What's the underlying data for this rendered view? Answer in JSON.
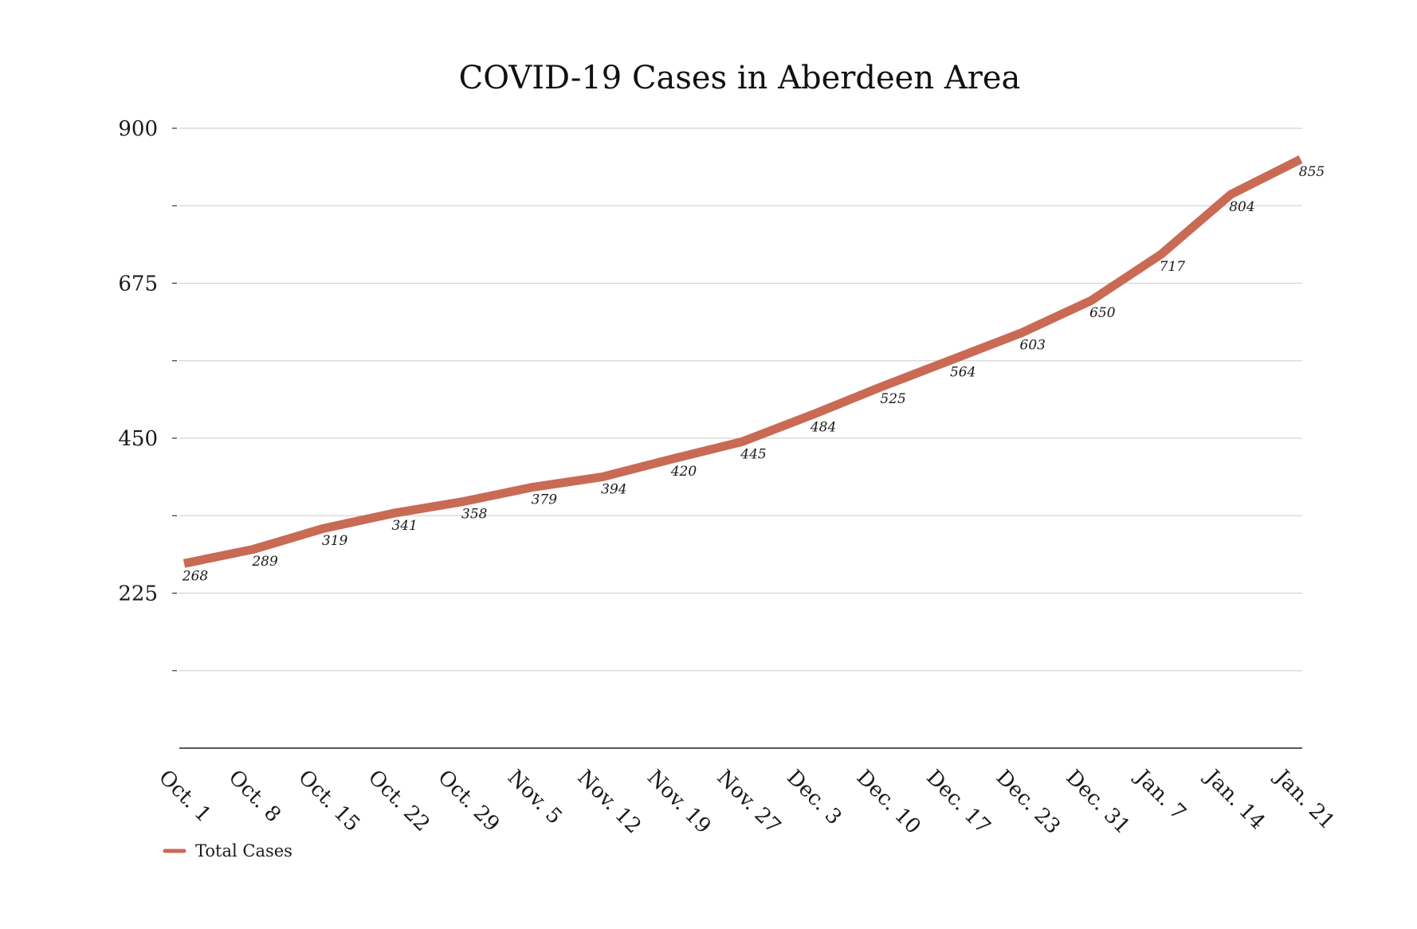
{
  "chart_data": {
    "type": "line",
    "title": "COVID-19 Cases in Aberdeen Area",
    "xlabel": "",
    "ylabel": "",
    "ylim": [
      0,
      900
    ],
    "yticks_labeled": [
      225,
      450,
      675,
      900
    ],
    "yticks_minor": [
      112.5,
      337.5,
      562.5,
      787.5
    ],
    "grid": true,
    "legend_position": "bottom-left",
    "categories": [
      "Oct. 1",
      "Oct. 8",
      "Oct. 15",
      "Oct. 22",
      "Oct. 29",
      "Nov. 5",
      "Nov. 12",
      "Nov. 19",
      "Nov. 27",
      "Dec. 3",
      "Dec. 10",
      "Dec. 17",
      "Dec. 23",
      "Dec. 31",
      "Jan. 7",
      "Jan. 14",
      "Jan. 21"
    ],
    "series": [
      {
        "name": "Total Cases",
        "color": "#c96a55",
        "values": [
          268,
          289,
          319,
          341,
          358,
          379,
          394,
          420,
          445,
          484,
          525,
          564,
          603,
          650,
          717,
          804,
          855
        ]
      }
    ]
  }
}
